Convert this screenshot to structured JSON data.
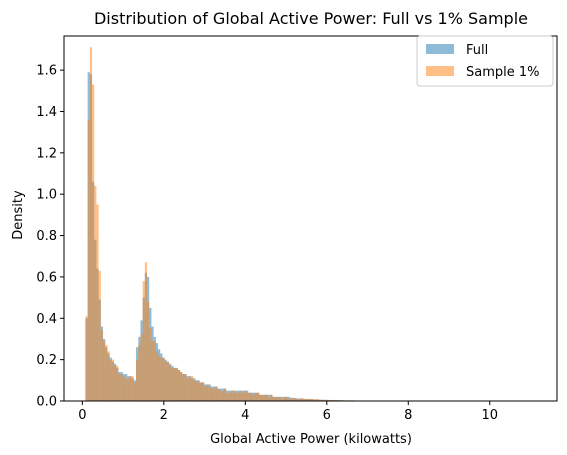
{
  "chart_data": {
    "type": "histogram",
    "title": "Distribution of Global Active Power: Full vs 1% Sample",
    "xlabel": "Global Active Power (kilowatts)",
    "ylabel": "Density",
    "xlim": [
      -0.45,
      11.65
    ],
    "ylim": [
      0,
      1.765
    ],
    "xticks": [
      "0",
      "2",
      "4",
      "6",
      "8",
      "10"
    ],
    "yticks": [
      "0.0",
      "0.2",
      "0.4",
      "0.6",
      "0.8",
      "1.0",
      "1.2",
      "1.4",
      "1.6"
    ],
    "grid": false,
    "legend_position": "top-right",
    "bin_width": 0.054,
    "bin_start": 0.076,
    "series": [
      {
        "name": "Full",
        "color": "#1f77b4",
        "opacity": 0.5,
        "values": [
          0.4,
          1.59,
          1.58,
          1.06,
          0.78,
          0.64,
          0.49,
          0.36,
          0.3,
          0.26,
          0.23,
          0.21,
          0.19,
          0.18,
          0.16,
          0.14,
          0.14,
          0.13,
          0.13,
          0.12,
          0.12,
          0.11,
          0.1,
          0.26,
          0.31,
          0.39,
          0.5,
          0.62,
          0.6,
          0.45,
          0.36,
          0.31,
          0.28,
          0.25,
          0.23,
          0.21,
          0.2,
          0.19,
          0.18,
          0.17,
          0.16,
          0.16,
          0.15,
          0.14,
          0.13,
          0.13,
          0.12,
          0.12,
          0.11,
          0.11,
          0.1,
          0.1,
          0.09,
          0.09,
          0.08,
          0.08,
          0.08,
          0.07,
          0.07,
          0.07,
          0.06,
          0.06,
          0.06,
          0.06,
          0.05,
          0.05,
          0.05,
          0.05,
          0.05,
          0.05,
          0.05,
          0.05,
          0.05,
          0.05,
          0.04,
          0.04,
          0.04,
          0.04,
          0.04,
          0.03,
          0.03,
          0.03,
          0.03,
          0.03,
          0.03,
          0.02,
          0.02,
          0.02,
          0.02,
          0.02,
          0.02,
          0.02,
          0.02,
          0.015,
          0.015,
          0.015,
          0.012,
          0.012,
          0.012,
          0.01,
          0.01,
          0.01,
          0.009,
          0.008,
          0.008,
          0.007,
          0.007,
          0.006,
          0.006,
          0.006,
          0.005,
          0.005,
          0.005,
          0.004,
          0.004,
          0.004,
          0.004,
          0.003,
          0.003,
          0.003,
          0.003,
          0.003,
          0.002,
          0.002,
          0.002,
          0.002,
          0.002,
          0.002,
          0.002,
          0.002,
          0.001,
          0.001,
          0.001,
          0.001,
          0.001,
          0.001,
          0.001,
          0.001,
          0.001,
          0.001,
          0.001,
          0.001,
          0.001,
          0.001,
          0.001,
          0.001,
          0.001,
          0.001,
          0.001,
          0.001,
          0.001,
          0.001,
          0.001,
          0.001,
          0.001,
          0.001,
          0.001,
          0.001,
          0.001,
          0.001,
          0.001,
          0.001,
          0.001,
          0.001,
          0.001,
          0.001,
          0.001,
          0.001,
          0.001,
          0.001,
          0.001,
          0.001,
          0.001,
          0.001,
          0.001,
          0.001,
          0.001,
          0.001,
          0.001,
          0.001,
          0.001,
          0.001,
          0.001,
          0.001,
          0.001,
          0.001,
          0.001,
          0.001,
          0.001,
          0.001,
          0.001,
          0.001,
          0.001,
          0.001,
          0.001,
          0.001,
          0.001,
          0.001,
          0.001,
          0.001
        ]
      },
      {
        "name": "Sample 1%",
        "color": "#ff7f0e",
        "opacity": 0.5,
        "values": [
          0.41,
          1.36,
          1.71,
          1.53,
          1.04,
          0.95,
          0.63,
          0.34,
          0.29,
          0.27,
          0.24,
          0.2,
          0.2,
          0.17,
          0.17,
          0.13,
          0.13,
          0.12,
          0.11,
          0.11,
          0.12,
          0.12,
          0.09,
          0.2,
          0.27,
          0.32,
          0.58,
          0.67,
          0.48,
          0.35,
          0.29,
          0.29,
          0.24,
          0.22,
          0.21,
          0.21,
          0.19,
          0.19,
          0.17,
          0.16,
          0.16,
          0.16,
          0.15,
          0.14,
          0.13,
          0.13,
          0.11,
          0.12,
          0.12,
          0.1,
          0.1,
          0.09,
          0.09,
          0.09,
          0.07,
          0.08,
          0.07,
          0.06,
          0.06,
          0.07,
          0.06,
          0.05,
          0.05,
          0.06,
          0.04,
          0.04,
          0.05,
          0.05,
          0.04,
          0.04,
          0.05,
          0.04,
          0.05,
          0.04,
          0.04,
          0.04,
          0.03,
          0.04,
          0.04,
          0.03,
          0.03,
          0.03,
          0.03,
          0.02,
          0.03,
          0.02,
          0.02,
          0.02,
          0.02,
          0.01,
          0.02,
          0.02,
          0.01,
          0.015,
          0.015,
          0.01,
          0.01,
          0.01,
          0.015,
          0.01,
          0.01,
          0.01,
          0.01,
          0.01,
          0.005,
          0.01,
          0.005,
          0.005,
          0.005,
          0.005,
          0.005,
          0.005,
          0.005,
          0.004,
          0.005,
          0.004,
          0.004,
          0.003,
          0.002,
          0.003,
          0.002,
          0.003,
          0.002,
          0.002,
          0.002,
          0.002,
          0.002,
          0.002,
          0.002,
          0.002,
          0.001,
          0.001,
          0.001,
          0.001,
          0.001,
          0.001,
          0.001,
          0.001,
          0.001,
          0.001,
          0.001,
          0.001,
          0.001,
          0.001,
          0.001,
          0.001,
          0.001,
          0.001,
          0.001,
          0.001,
          0.001,
          0.001,
          0.001,
          0.001,
          0.001,
          0.001,
          0.001,
          0.001,
          0.001,
          0.001,
          0.001,
          0.001,
          0.001,
          0.001,
          0.001,
          0.001,
          0.001,
          0.001,
          0.001,
          0.001,
          0.001,
          0.001,
          0.001,
          0.001,
          0.001,
          0.001,
          0.001,
          0.001,
          0.001,
          0.001,
          0.001,
          0.001,
          0.001,
          0.001,
          0.001,
          0.001,
          0.001,
          0.001,
          0.001,
          0.001,
          0.001,
          0.001,
          0.001,
          0.001,
          0.001,
          0.001,
          0.001,
          0.001,
          0.001
        ]
      }
    ]
  }
}
